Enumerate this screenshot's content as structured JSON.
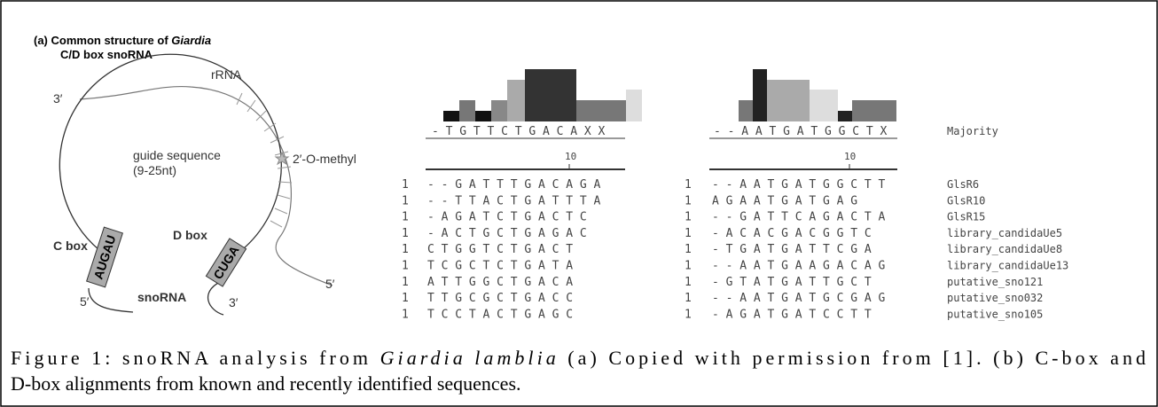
{
  "panel_a": {
    "title_prefix": "(a) Common structure of",
    "title_italic": "Giardia",
    "title_line2": "C/D box snoRNA",
    "labels": {
      "rrna_3": "3′",
      "rrna": "rRNA",
      "guide": "guide sequence",
      "guide_len": "(9-25nt)",
      "methyl": "2′-O-methyl",
      "c_box": "C box",
      "c_seq": "AUGAU",
      "d_box": "D box",
      "d_seq": "CUGA",
      "sno_5": "5′",
      "snorna": "snoRNA",
      "sno_3": "3′",
      "rrna_5": "5′"
    }
  },
  "alignment": {
    "majority_label": "Majority",
    "c_box": {
      "majority": "-TGTTCTGACAXX",
      "tick": 10
    },
    "d_box": {
      "majority": "--AATGATGGCTX",
      "tick": 10
    },
    "rows": [
      {
        "c_start": 1,
        "c_seq": "--GATTTGACAGA",
        "d_start": 1,
        "d_seq": "--AATGATGGCTT",
        "name": "GlsR6"
      },
      {
        "c_start": 1,
        "c_seq": "--TTACTGATTTA",
        "d_start": 1,
        "d_seq": "AGAATGATGAG",
        "name": "GlsR10"
      },
      {
        "c_start": 1,
        "c_seq": "-AGATCTGACTC",
        "d_start": 1,
        "d_seq": "--GATTCAGACTA",
        "name": "GlsR15"
      },
      {
        "c_start": 1,
        "c_seq": "-ACTGCTGAGAC",
        "d_start": 1,
        "d_seq": "-ACACGACGGTC",
        "name": "library_candidaUe5"
      },
      {
        "c_start": 1,
        "c_seq": "CTGGTCTGACT",
        "d_start": 1,
        "d_seq": "-TGATGATTCGA",
        "name": "library_candidaUe8"
      },
      {
        "c_start": 1,
        "c_seq": "TCGCTCTGATA",
        "d_start": 1,
        "d_seq": "--AATGAAGACAG",
        "name": "library_candidaUe13"
      },
      {
        "c_start": 1,
        "c_seq": "ATTGGCTGACA",
        "d_start": 1,
        "d_seq": "-GTATGATTGCT",
        "name": "putative_sno121"
      },
      {
        "c_start": 1,
        "c_seq": "TTGCGCTGACC",
        "d_start": 1,
        "d_seq": "--AATGATGCGAG",
        "name": "putative_sno032"
      },
      {
        "c_start": 1,
        "c_seq": "TCCTACTGAGC",
        "d_start": 1,
        "d_seq": "-AGATGATCCTT",
        "name": "putative_sno105"
      }
    ]
  },
  "caption": {
    "prefix": "Figure 1: snoRNA analysis from",
    "italic": "Giardia lamblia",
    "line1_rest": "(a) Copied with permission from [1]. (b) C-box and",
    "line2": "D-box alignments from known and recently identified sequences."
  }
}
